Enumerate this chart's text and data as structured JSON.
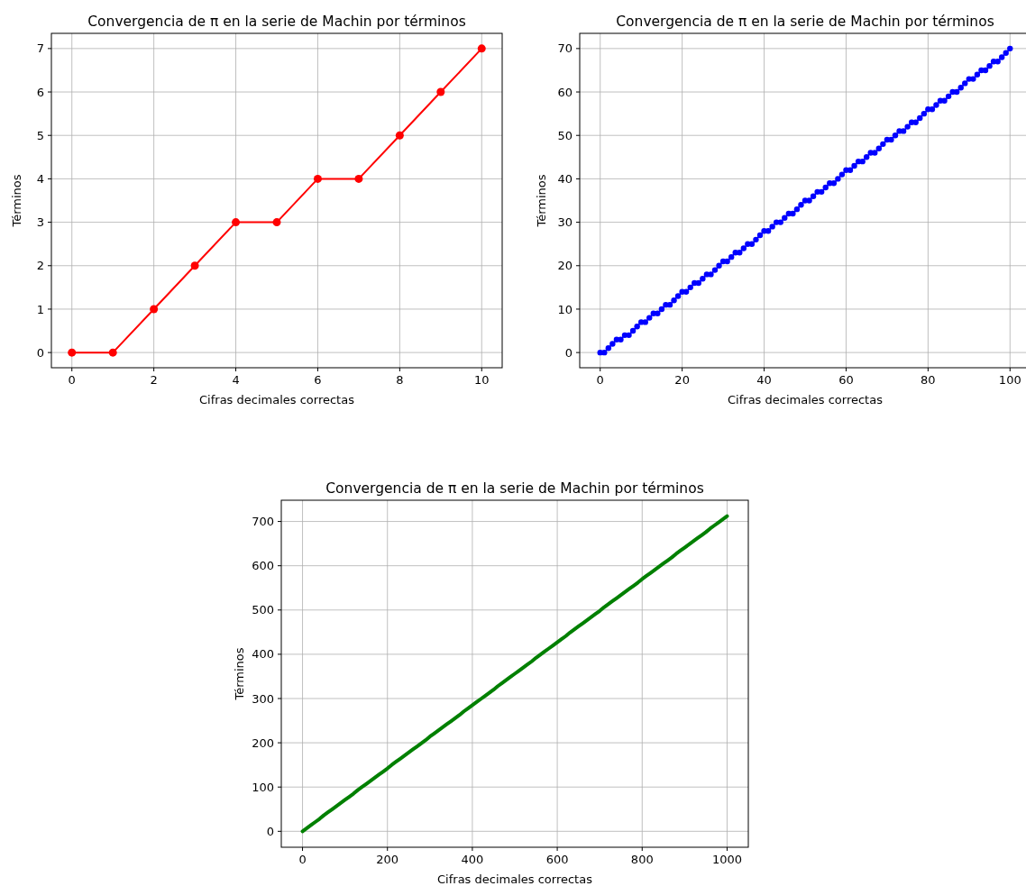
{
  "chart_data": [
    {
      "type": "line",
      "title": "Convergencia de π en la serie de Machin por términos",
      "xlabel": "Cifras decimales correctas",
      "ylabel": "Términos",
      "grid": true,
      "marker": "circle",
      "line_style": "solid",
      "xlim": [
        -0.5,
        10.5
      ],
      "ylim": [
        -0.35,
        7.35
      ],
      "xticks": [
        0,
        2,
        4,
        6,
        8,
        10
      ],
      "yticks": [
        0,
        1,
        2,
        3,
        4,
        5,
        6,
        7
      ],
      "x": [
        0,
        1,
        2,
        3,
        4,
        5,
        6,
        7,
        8,
        9,
        10
      ],
      "series": [
        {
          "color": "#ff0000",
          "values": [
            0,
            0,
            1,
            2,
            3,
            3,
            4,
            4,
            5,
            6,
            7
          ]
        }
      ]
    },
    {
      "type": "line",
      "title": "Convergencia de π en la serie de Machin por términos",
      "xlabel": "Cifras decimales correctas",
      "ylabel": "Términos",
      "grid": true,
      "marker": "circle",
      "line_style": "solid",
      "xlim": [
        -5,
        105
      ],
      "ylim": [
        -3.5,
        73.5
      ],
      "xticks": [
        0,
        20,
        40,
        60,
        80,
        100
      ],
      "yticks": [
        0,
        10,
        20,
        30,
        40,
        50,
        60,
        70
      ],
      "x": [
        0,
        1,
        2,
        3,
        4,
        5,
        6,
        7,
        8,
        9,
        10,
        11,
        12,
        13,
        14,
        15,
        16,
        17,
        18,
        19,
        20,
        21,
        22,
        23,
        24,
        25,
        26,
        27,
        28,
        29,
        30,
        31,
        32,
        33,
        34,
        35,
        36,
        37,
        38,
        39,
        40,
        41,
        42,
        43,
        44,
        45,
        46,
        47,
        48,
        49,
        50,
        51,
        52,
        53,
        54,
        55,
        56,
        57,
        58,
        59,
        60,
        61,
        62,
        63,
        64,
        65,
        66,
        67,
        68,
        69,
        70,
        71,
        72,
        73,
        74,
        75,
        76,
        77,
        78,
        79,
        80,
        81,
        82,
        83,
        84,
        85,
        86,
        87,
        88,
        89,
        90,
        91,
        92,
        93,
        94,
        95,
        96,
        97,
        98,
        99,
        100
      ],
      "series": [
        {
          "color": "#0000ff",
          "values": [
            0,
            0,
            1,
            2,
            3,
            3,
            4,
            4,
            5,
            6,
            7,
            7,
            8,
            9,
            9,
            10,
            11,
            11,
            12,
            13,
            14,
            14,
            15,
            16,
            16,
            17,
            18,
            18,
            19,
            20,
            21,
            21,
            22,
            23,
            23,
            24,
            25,
            25,
            26,
            27,
            28,
            28,
            29,
            30,
            30,
            31,
            32,
            32,
            33,
            34,
            35,
            35,
            36,
            37,
            37,
            38,
            39,
            39,
            40,
            41,
            42,
            42,
            43,
            44,
            44,
            45,
            46,
            46,
            47,
            48,
            49,
            49,
            50,
            51,
            51,
            52,
            53,
            53,
            54,
            55,
            56,
            56,
            57,
            58,
            58,
            59,
            60,
            60,
            61,
            62,
            63,
            63,
            64,
            65,
            65,
            66,
            67,
            67,
            68,
            69,
            70
          ]
        }
      ]
    },
    {
      "type": "line",
      "title": "Convergencia de π en la serie de Machin por términos",
      "xlabel": "Cifras decimales correctas",
      "ylabel": "Términos",
      "grid": true,
      "line_style": "solid",
      "xlim": [
        -50,
        1050
      ],
      "ylim": [
        -36,
        748
      ],
      "xticks": [
        0,
        200,
        400,
        600,
        800,
        1000
      ],
      "yticks": [
        0,
        100,
        200,
        300,
        400,
        500,
        600,
        700
      ],
      "x": [
        0,
        10,
        20,
        30,
        40,
        50,
        60,
        70,
        80,
        90,
        100,
        110,
        120,
        130,
        140,
        150,
        160,
        170,
        180,
        190,
        200,
        210,
        220,
        230,
        240,
        250,
        260,
        270,
        280,
        290,
        300,
        310,
        320,
        330,
        340,
        350,
        360,
        370,
        380,
        390,
        400,
        410,
        420,
        430,
        440,
        450,
        460,
        470,
        480,
        490,
        500,
        510,
        520,
        530,
        540,
        550,
        560,
        570,
        580,
        590,
        600,
        610,
        620,
        630,
        640,
        650,
        660,
        670,
        680,
        690,
        700,
        710,
        720,
        730,
        740,
        750,
        760,
        770,
        780,
        790,
        800,
        810,
        820,
        830,
        840,
        850,
        860,
        870,
        880,
        890,
        900,
        910,
        920,
        930,
        940,
        950,
        960,
        970,
        980,
        990,
        1000
      ],
      "series": [
        {
          "color": "#008000",
          "values": [
            0,
            7,
            14,
            21,
            28,
            36,
            43,
            50,
            57,
            64,
            71,
            78,
            85,
            93,
            100,
            107,
            114,
            121,
            128,
            135,
            142,
            150,
            157,
            164,
            171,
            178,
            185,
            192,
            199,
            206,
            214,
            221,
            228,
            235,
            242,
            249,
            256,
            263,
            271,
            278,
            285,
            292,
            299,
            306,
            313,
            320,
            328,
            335,
            342,
            349,
            356,
            363,
            370,
            377,
            384,
            392,
            399,
            406,
            413,
            420,
            427,
            434,
            441,
            449,
            456,
            463,
            470,
            477,
            484,
            491,
            498,
            506,
            513,
            520,
            527,
            534,
            541,
            548,
            555,
            562,
            570,
            577,
            584,
            591,
            598,
            605,
            612,
            619,
            627,
            634,
            641,
            648,
            655,
            662,
            669,
            676,
            684,
            691,
            698,
            705,
            712
          ]
        }
      ]
    }
  ]
}
